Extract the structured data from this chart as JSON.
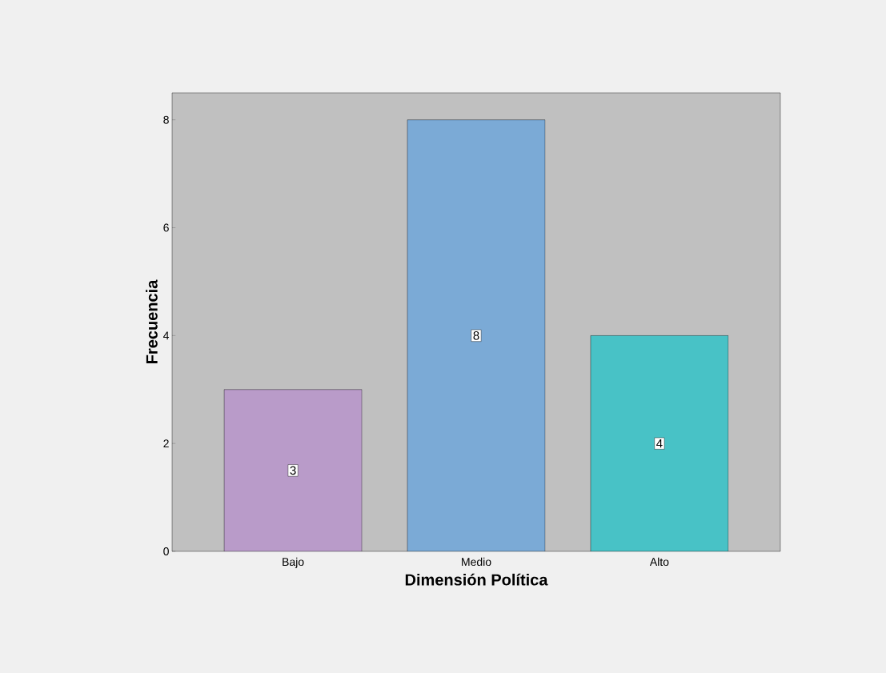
{
  "chart_data": {
    "type": "bar",
    "xlabel": "Dimensión Política",
    "ylabel": "Frecuencia",
    "categories": [
      "Bajo",
      "Medio",
      "Alto"
    ],
    "values": [
      3,
      8,
      4
    ],
    "colors": [
      "#b99bc9",
      "#7baad6",
      "#48c2c6"
    ],
    "ylim": [
      0,
      8.5
    ],
    "yticks": [
      0,
      2,
      4,
      6,
      8
    ],
    "data_labels": true
  }
}
